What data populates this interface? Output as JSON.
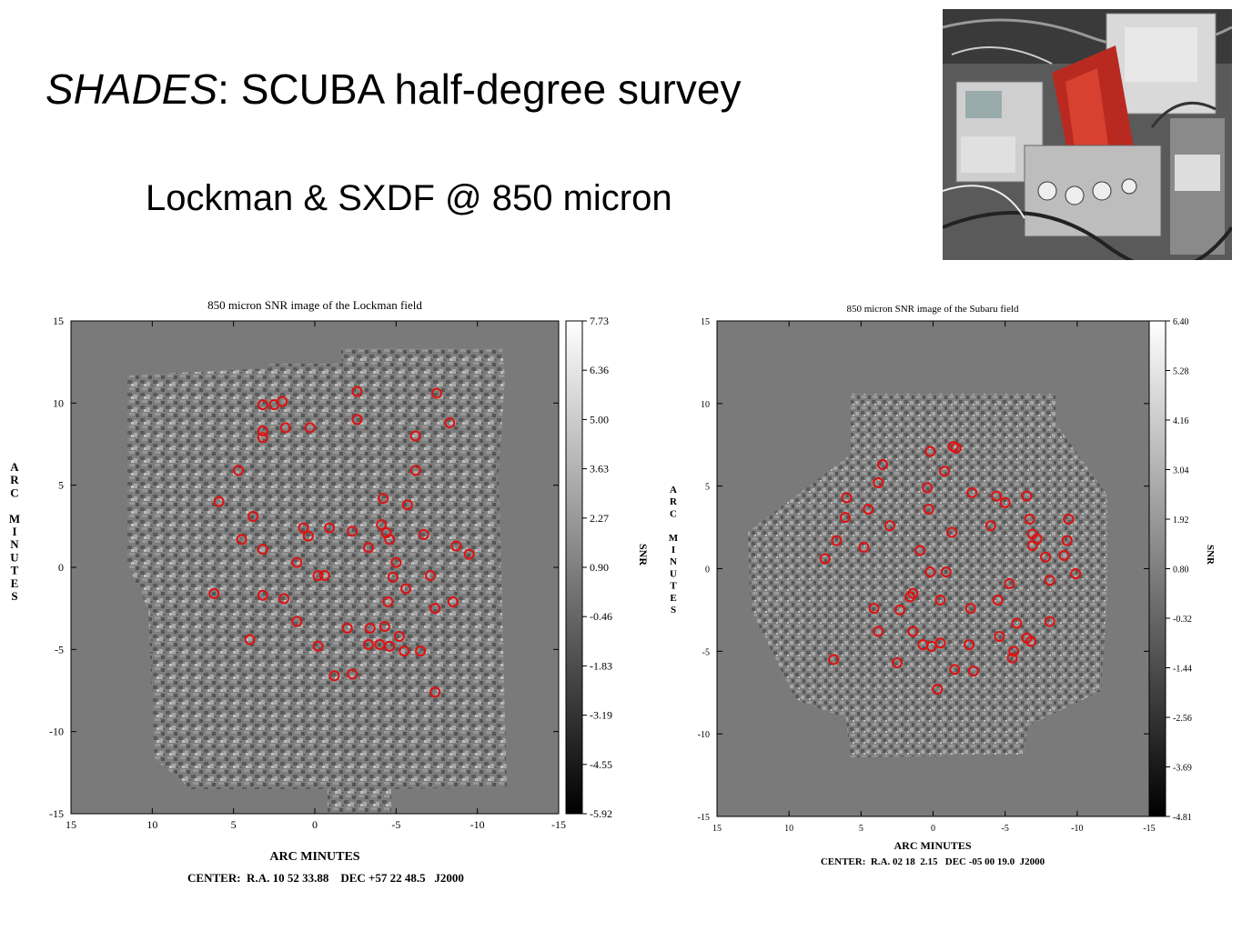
{
  "slide": {
    "title_italic": "SHADES",
    "title_rest": ": SCUBA half-degree survey",
    "subtitle": "Lockman & SXDF @ 850 micron"
  },
  "photo": {
    "icon": "telescope-instrument-photo"
  },
  "colors": {
    "marker": "#e01010",
    "map_bg": "#7a7a7a",
    "frame": "#000000"
  },
  "panels": [
    {
      "title": "850 micron SNR image of the Lockman field",
      "x_ticks": [
        "15",
        "10",
        "5",
        "0",
        "-5",
        "-10",
        "-15"
      ],
      "y_ticks": [
        "15",
        "10",
        "5",
        "0",
        "-5",
        "-10",
        "-15"
      ],
      "y_label": "ARC MINUTES",
      "x_label": "ARC MINUTES",
      "colorbar_ticks": [
        "7.73",
        "6.36",
        "5.00",
        "3.63",
        "2.27",
        "0.90",
        "-0.46",
        "-1.83",
        "-3.19",
        "-4.55",
        "-5.92"
      ],
      "colorbar_label": "SNR",
      "center": "CENTER:  R.A. 10 52 33.88    DEC +57 22 48.5   J2000"
    },
    {
      "title": "850 micron SNR image of the Subaru field",
      "x_ticks": [
        "15",
        "10",
        "5",
        "0",
        "-5",
        "-10",
        "-15"
      ],
      "y_ticks": [
        "15",
        "10",
        "5",
        "0",
        "-5",
        "-10",
        "-15"
      ],
      "y_label": "ARC MINUTES",
      "x_label": "ARC MINUTES",
      "colorbar_ticks": [
        "6.40",
        "5.28",
        "4.16",
        "3.04",
        "1.92",
        "0.80",
        "-0.32",
        "-1.44",
        "-2.56",
        "-3.69",
        "-4.81"
      ],
      "colorbar_label": "SNR",
      "center": "CENTER:  R.A. 02 18  2.15   DEC -05 00 19.0  J2000"
    }
  ],
  "chart_data": [
    {
      "type": "scatter",
      "title": "850 micron SNR image of the Lockman field",
      "xlabel": "ARC MINUTES",
      "ylabel": "ARC MINUTES",
      "xlim": [
        15,
        -15
      ],
      "ylim": [
        -15,
        15
      ],
      "colorbar": {
        "label": "SNR",
        "range": [
          -5.92,
          7.73
        ]
      },
      "series": [
        {
          "x": [
            3.2,
            2.5,
            2.0,
            1.8,
            0.3,
            -2.6,
            -7.5,
            -8.3,
            3.2,
            3.2,
            -2.6,
            -6.2,
            4.7,
            -6.2,
            5.9,
            -4.2,
            -5.7,
            3.8,
            4.5,
            0.7,
            0.4,
            -0.9,
            -2.3,
            -4.1,
            -4.4,
            -4.6,
            -6.7,
            -3.3,
            3.2,
            -8.7,
            -9.5,
            1.1,
            -5.0,
            -0.2,
            -0.6,
            -4.8,
            -5.6,
            -7.1,
            6.2,
            3.2,
            1.9,
            -4.5,
            -8.5,
            -7.4,
            1.1,
            -2.0,
            -3.4,
            -4.3,
            4.0,
            -0.2,
            -5.2,
            -3.3,
            -4.0,
            -4.6,
            -5.5,
            -6.5,
            -1.2,
            -2.3,
            -7.4
          ],
          "y": [
            9.9,
            9.9,
            10.1,
            8.5,
            8.5,
            10.7,
            10.6,
            8.8,
            8.3,
            7.9,
            9.0,
            8.0,
            5.9,
            5.9,
            4.0,
            4.2,
            3.8,
            3.1,
            1.7,
            2.4,
            1.9,
            2.4,
            2.2,
            2.6,
            2.1,
            1.7,
            2.0,
            1.2,
            1.1,
            1.3,
            0.8,
            0.3,
            0.3,
            -0.5,
            -0.5,
            -0.6,
            -1.3,
            -0.5,
            -1.6,
            -1.7,
            -1.9,
            -2.1,
            -2.1,
            -2.5,
            -3.3,
            -3.7,
            -3.7,
            -3.6,
            -4.4,
            -4.8,
            -4.2,
            -4.7,
            -4.7,
            -4.8,
            -5.1,
            -5.1,
            -6.6,
            -6.5,
            -7.6
          ]
        }
      ]
    },
    {
      "type": "scatter",
      "title": "850 micron SNR image of the Subaru field",
      "xlabel": "ARC MINUTES",
      "ylabel": "ARC MINUTES",
      "xlim": [
        15,
        -15
      ],
      "ylim": [
        -15,
        15
      ],
      "colorbar": {
        "label": "SNR",
        "range": [
          -4.81,
          6.4
        ]
      },
      "series": [
        {
          "x": [
            -1.4,
            -1.6,
            0.2,
            -0.8,
            3.5,
            3.8,
            0.4,
            -2.7,
            -4.4,
            -5.0,
            -6.5,
            6.0,
            4.5,
            0.3,
            6.1,
            -6.7,
            -9.4,
            3.0,
            -4.0,
            -6.9,
            -7.2,
            -1.3,
            -9.3,
            6.7,
            4.8,
            0.9,
            -9.1,
            -7.8,
            7.5,
            0.2,
            -0.9,
            -6.9,
            -9.9,
            -5.3,
            1.4,
            -8.1,
            -4.5,
            1.6,
            -0.5,
            -2.6,
            4.1,
            2.3,
            -5.8,
            -8.1,
            1.4,
            -4.6,
            3.8,
            -6.5,
            -6.8,
            0.7,
            -2.5,
            -0.5,
            0.1,
            -5.6,
            -5.5,
            6.9,
            2.5,
            -1.5,
            -2.8,
            -0.3
          ],
          "y": [
            7.4,
            7.3,
            7.1,
            5.9,
            6.3,
            5.2,
            4.9,
            4.6,
            4.4,
            4.0,
            4.4,
            4.3,
            3.6,
            3.6,
            3.1,
            3.0,
            3.0,
            2.6,
            2.6,
            2.1,
            1.8,
            2.2,
            1.7,
            1.7,
            1.3,
            1.1,
            0.8,
            0.7,
            0.6,
            -0.2,
            -0.2,
            1.4,
            -0.3,
            -0.9,
            -1.5,
            -0.7,
            -1.9,
            -1.7,
            -1.9,
            -2.4,
            -2.4,
            -2.5,
            -3.3,
            -3.2,
            -3.8,
            -4.1,
            -3.8,
            -4.2,
            -4.4,
            -4.6,
            -4.6,
            -4.5,
            -4.7,
            -5.0,
            -5.4,
            -5.5,
            -5.7,
            -6.1,
            -6.2,
            -7.3
          ]
        }
      ]
    }
  ]
}
